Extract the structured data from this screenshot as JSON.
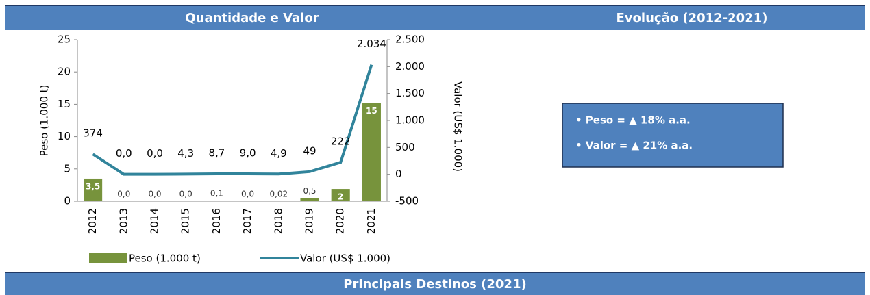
{
  "headers": {
    "left": "Quantidade e Valor",
    "right": "Evolução (2012-2021)",
    "bottom": "Principais Destinos (2021)"
  },
  "summary": [
    "• Peso = ▲ 18% a.a.",
    "• Valor = ▲ 21% a.a."
  ],
  "chart_data": {
    "type": "bar_line",
    "categories": [
      "2012",
      "2013",
      "2014",
      "2015",
      "2016",
      "2017",
      "2018",
      "2019",
      "2020",
      "2021"
    ],
    "ylabel": "Peso (1.000 t)",
    "y2label": "Valor (US$ 1.000)",
    "ylim": [
      0,
      25
    ],
    "yticks": [
      0,
      5,
      10,
      15,
      20,
      25
    ],
    "y2lim": [
      -500,
      2500
    ],
    "y2ticks": [
      -500,
      0,
      500,
      {
        "value": 1000,
        "label": "1.000"
      },
      {
        "value": 1500,
        "label": "1.500"
      },
      {
        "value": 2000,
        "label": "2.000"
      },
      {
        "value": 2500,
        "label": "2.500"
      }
    ],
    "series": [
      {
        "name": "Peso (1.000 t)",
        "type": "bar",
        "color": "#77933c",
        "values": [
          3.5,
          0.0,
          0.0,
          0.0,
          0.1,
          0.0,
          0.02,
          0.5,
          1.9,
          15.2
        ],
        "value_labels": [
          "3,5",
          "0,0",
          "0,0",
          "0,0",
          "0,1",
          "0,0",
          "0,02",
          "0,5",
          "2",
          "15"
        ]
      },
      {
        "name": "Valor (US$ 1.000)",
        "type": "line",
        "axis": "y2",
        "color": "#31849b",
        "values": [
          374,
          0.0,
          0.0,
          4.3,
          8.7,
          9.0,
          4.9,
          49,
          222,
          2034
        ],
        "value_labels": [
          "374",
          "0,0",
          "0,0",
          "4,3",
          "8,7",
          "9,0",
          "4,9",
          "49",
          "222",
          "2.034"
        ]
      }
    ]
  }
}
